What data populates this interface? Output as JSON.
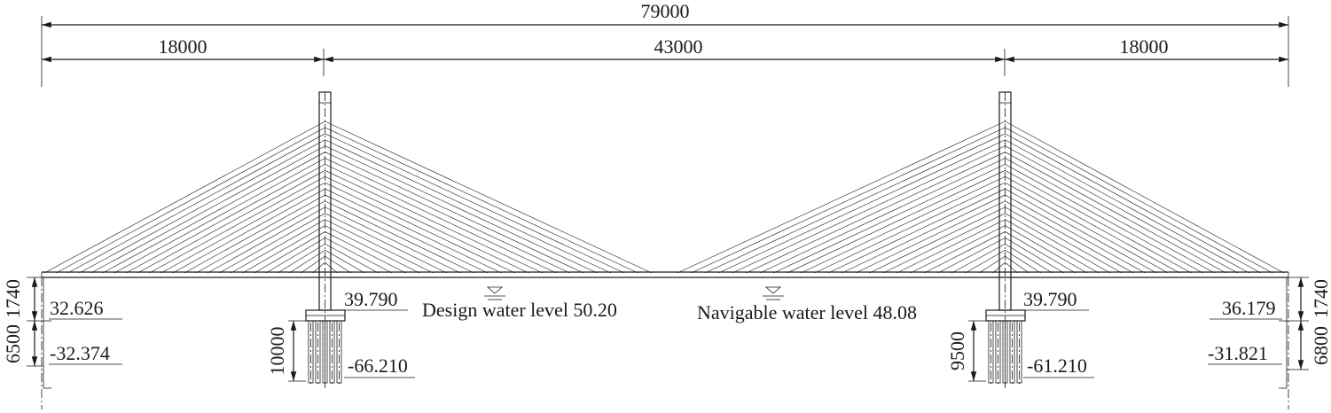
{
  "dimensions": {
    "total": "79000",
    "left_side_span": "18000",
    "main_span": "43000",
    "right_side_span": "18000"
  },
  "water_levels": {
    "design": "Design water level 50.20",
    "navigable": "Navigable water level 48.08"
  },
  "left_pier": {
    "dim_upper": "1740",
    "dim_lower": "6500",
    "elev_top": "32.626",
    "elev_bottom": "-32.374"
  },
  "left_tower": {
    "elev_cap": "39.790",
    "pile_length": "10000",
    "elev_pile_tip": "-66.210"
  },
  "right_tower": {
    "elev_cap": "39.790",
    "pile_length": "9500",
    "elev_pile_tip": "-61.210"
  },
  "right_pier": {
    "dim_upper": "1740",
    "dim_lower": "6800",
    "elev_top": "36.179",
    "elev_bottom": "-31.821"
  }
}
